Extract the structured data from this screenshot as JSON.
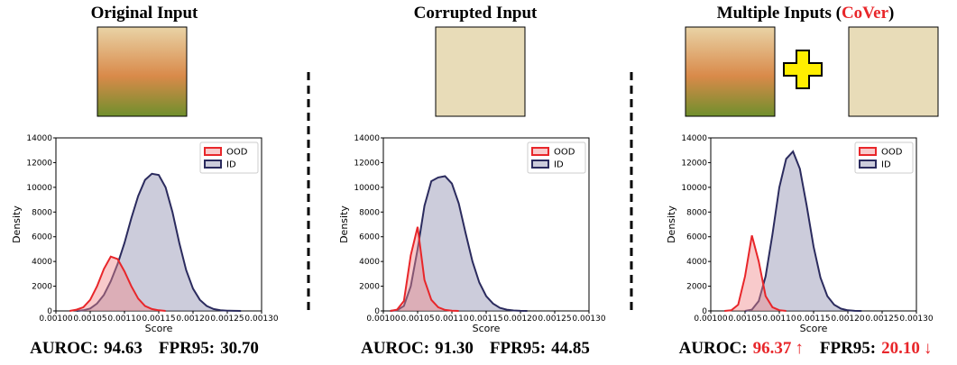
{
  "chart_data": [
    {
      "type": "density",
      "title": [
        "Original Input"
      ],
      "title_highlight": null,
      "xlabel": "Score",
      "ylabel": "Density",
      "xlim": [
        0.001,
        0.0013
      ],
      "ylim": [
        0,
        14000
      ],
      "xticks": [
        {
          "value": 0.001,
          "label": "0.00100"
        },
        {
          "value": 0.00105,
          "label": "0.00105"
        },
        {
          "value": 0.0011,
          "label": "0.00110"
        },
        {
          "value": 0.00115,
          "label": "0.00115"
        },
        {
          "value": 0.0012,
          "label": "0.00120"
        },
        {
          "value": 0.00125,
          "label": "0.00125"
        },
        {
          "value": 0.0013,
          "label": "0.00130"
        }
      ],
      "yticks": [
        0,
        2000,
        4000,
        6000,
        8000,
        10000,
        12000,
        14000
      ],
      "legend": "upper right",
      "x": [
        0.001,
        0.00101,
        0.00102,
        0.00103,
        0.00104,
        0.00105,
        0.00106,
        0.00107,
        0.00108,
        0.00109,
        0.0011,
        0.00111,
        0.00112,
        0.00113,
        0.00114,
        0.00115,
        0.00116,
        0.00117,
        0.00118,
        0.00119,
        0.0012,
        0.00121,
        0.00122,
        0.00123,
        0.00124,
        0.00125,
        0.00126,
        0.00127,
        0.00128,
        0.00129,
        0.0013
      ],
      "series": [
        {
          "name": "OOD",
          "color": "#e8262a",
          "fill": "#f08a8c",
          "values": [
            null,
            null,
            0,
            100,
            300,
            900,
            2000,
            3400,
            4400,
            4200,
            3200,
            2000,
            1000,
            400,
            150,
            50,
            0,
            null,
            null,
            null,
            null,
            null,
            null,
            null,
            null,
            null,
            null,
            null,
            null,
            null,
            null
          ]
        },
        {
          "name": "ID",
          "color": "#2b2b5e",
          "fill": "#8e8eb0",
          "values": [
            null,
            null,
            null,
            0,
            50,
            200,
            600,
            1300,
            2400,
            3800,
            5500,
            7500,
            9300,
            10600,
            11100,
            11000,
            10000,
            8000,
            5500,
            3300,
            1800,
            900,
            400,
            150,
            60,
            20,
            5,
            0,
            null,
            null,
            null
          ]
        }
      ],
      "metrics": [
        {
          "label": "AUROC:",
          "value": 94.63,
          "arrow": null
        },
        {
          "label": "FPR95:",
          "value": 30.7,
          "value_label": "30.70",
          "arrow": null
        }
      ]
    },
    {
      "type": "density",
      "title": [
        "Corrupted Input"
      ],
      "title_highlight": null,
      "xlabel": "Score",
      "ylabel": "Density",
      "xlim": [
        0.001,
        0.0013
      ],
      "ylim": [
        0,
        14000
      ],
      "xticks": [
        {
          "value": 0.001,
          "label": "0.00100"
        },
        {
          "value": 0.00105,
          "label": "0.00105"
        },
        {
          "value": 0.0011,
          "label": "0.00110"
        },
        {
          "value": 0.00115,
          "label": "0.00115"
        },
        {
          "value": 0.0012,
          "label": "0.00120"
        },
        {
          "value": 0.00125,
          "label": "0.00125"
        },
        {
          "value": 0.0013,
          "label": "0.00130"
        }
      ],
      "yticks": [
        0,
        2000,
        4000,
        6000,
        8000,
        10000,
        12000,
        14000
      ],
      "legend": "upper right",
      "x": [
        0.001,
        0.00101,
        0.00102,
        0.00103,
        0.00104,
        0.00105,
        0.00106,
        0.00107,
        0.00108,
        0.00109,
        0.0011,
        0.00111,
        0.00112,
        0.00113,
        0.00114,
        0.00115,
        0.00116,
        0.00117,
        0.00118,
        0.00119,
        0.0012,
        0.00121,
        0.00122,
        0.00123,
        0.00124,
        0.00125,
        0.00126,
        0.00127,
        0.00128,
        0.00129,
        0.0013
      ],
      "series": [
        {
          "name": "OOD",
          "color": "#e8262a",
          "fill": "#f08a8c",
          "values": [
            null,
            0,
            100,
            800,
            4500,
            6800,
            2500,
            900,
            300,
            80,
            20,
            0,
            null,
            null,
            null,
            null,
            null,
            null,
            null,
            null,
            null,
            null,
            null,
            null,
            null,
            null,
            null,
            null,
            null,
            null,
            null
          ]
        },
        {
          "name": "ID",
          "color": "#2b2b5e",
          "fill": "#8e8eb0",
          "values": [
            null,
            0,
            50,
            400,
            2000,
            5000,
            8500,
            10500,
            10800,
            10900,
            10300,
            8700,
            6300,
            4000,
            2300,
            1200,
            600,
            250,
            100,
            40,
            10,
            0,
            null,
            null,
            null,
            null,
            null,
            null,
            null,
            null,
            null
          ]
        }
      ],
      "metrics": [
        {
          "label": "AUROC:",
          "value": 91.3,
          "value_label": "91.30",
          "arrow": null
        },
        {
          "label": "FPR95:",
          "value": 44.85,
          "arrow": null
        }
      ]
    },
    {
      "type": "density",
      "title": [
        "Multiple Inputs (",
        "CoVer",
        ")"
      ],
      "title_highlight": 1,
      "xlabel": "Score",
      "ylabel": "Density",
      "xlim": [
        0.001,
        0.0013
      ],
      "ylim": [
        0,
        14000
      ],
      "xticks": [
        {
          "value": 0.001,
          "label": "0.00100"
        },
        {
          "value": 0.00105,
          "label": "0.00105"
        },
        {
          "value": 0.0011,
          "label": "0.00110"
        },
        {
          "value": 0.00115,
          "label": "0.00115"
        },
        {
          "value": 0.0012,
          "label": "0.00120"
        },
        {
          "value": 0.00125,
          "label": "0.00125"
        },
        {
          "value": 0.0013,
          "label": "0.00130"
        }
      ],
      "yticks": [
        0,
        2000,
        4000,
        6000,
        8000,
        10000,
        12000,
        14000
      ],
      "legend": "upper right",
      "x": [
        0.001,
        0.00101,
        0.00102,
        0.00103,
        0.00104,
        0.00105,
        0.00106,
        0.00107,
        0.00108,
        0.00109,
        0.0011,
        0.00111,
        0.00112,
        0.00113,
        0.00114,
        0.00115,
        0.00116,
        0.00117,
        0.00118,
        0.00119,
        0.0012,
        0.00121,
        0.00122,
        0.00123,
        0.00124,
        0.00125,
        0.00126,
        0.00127,
        0.00128,
        0.00129,
        0.0013
      ],
      "series": [
        {
          "name": "OOD",
          "color": "#e8262a",
          "fill": "#f08a8c",
          "values": [
            null,
            null,
            0,
            50,
            500,
            2800,
            6100,
            4000,
            1200,
            300,
            60,
            0,
            null,
            null,
            null,
            null,
            null,
            null,
            null,
            null,
            null,
            null,
            null,
            null,
            null,
            null,
            null,
            null,
            null,
            null,
            null
          ]
        },
        {
          "name": "ID",
          "color": "#2b2b5e",
          "fill": "#8e8eb0",
          "values": [
            null,
            null,
            null,
            null,
            null,
            0,
            100,
            800,
            2800,
            6200,
            10000,
            12300,
            12900,
            11500,
            8500,
            5200,
            2700,
            1200,
            500,
            180,
            50,
            10,
            0,
            null,
            null,
            null,
            null,
            null,
            null,
            null,
            null
          ]
        }
      ],
      "metrics": [
        {
          "label": "AUROC:",
          "value": 96.37,
          "arrow": "↑"
        },
        {
          "label": "FPR95:",
          "value": 20.1,
          "value_label": "20.10",
          "arrow": "↓"
        }
      ]
    }
  ]
}
